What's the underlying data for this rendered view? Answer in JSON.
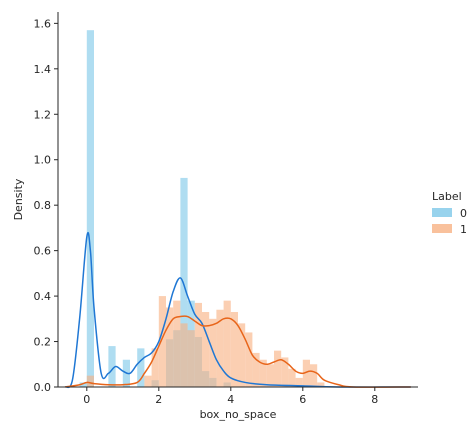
{
  "chart_data": {
    "type": "histogram",
    "xlabel": "box_no_space",
    "ylabel": "Density",
    "xlim": [
      -0.8,
      9.2
    ],
    "ylim": [
      0,
      1.65
    ],
    "xticks": [
      0,
      2,
      4,
      6,
      8
    ],
    "yticks": [
      0.0,
      0.2,
      0.4,
      0.6,
      0.8,
      1.0,
      1.2,
      1.4,
      1.6
    ],
    "bin_width": 0.2,
    "legend": {
      "title": "Label",
      "placement": "right",
      "entries": [
        "0",
        "1"
      ]
    },
    "series": [
      {
        "name": "0",
        "color": "#7ec8e8",
        "line_color": "#1f77d4",
        "histogram": [
          {
            "x": -0.1,
            "density": 0.02
          },
          {
            "x": 0.1,
            "density": 1.57
          },
          {
            "x": 0.7,
            "density": 0.18
          },
          {
            "x": 1.5,
            "density": 0.17
          },
          {
            "x": 1.1,
            "density": 0.12
          },
          {
            "x": 1.9,
            "density": 0.03
          },
          {
            "x": 2.3,
            "density": 0.21
          },
          {
            "x": 2.5,
            "density": 0.25
          },
          {
            "x": 2.7,
            "density": 0.92
          },
          {
            "x": 2.9,
            "density": 0.38
          },
          {
            "x": 3.1,
            "density": 0.22
          },
          {
            "x": 3.3,
            "density": 0.07
          },
          {
            "x": 3.5,
            "density": 0.04
          },
          {
            "x": 3.9,
            "density": 0.02
          }
        ],
        "kde": [
          [
            -0.6,
            0.0
          ],
          [
            -0.4,
            0.03
          ],
          [
            -0.2,
            0.3
          ],
          [
            0.0,
            0.66
          ],
          [
            0.1,
            0.6
          ],
          [
            0.2,
            0.35
          ],
          [
            0.4,
            0.06
          ],
          [
            0.6,
            0.06
          ],
          [
            0.8,
            0.09
          ],
          [
            1.0,
            0.07
          ],
          [
            1.2,
            0.06
          ],
          [
            1.4,
            0.1
          ],
          [
            1.6,
            0.13
          ],
          [
            1.8,
            0.15
          ],
          [
            2.0,
            0.2
          ],
          [
            2.2,
            0.3
          ],
          [
            2.4,
            0.42
          ],
          [
            2.6,
            0.48
          ],
          [
            2.8,
            0.4
          ],
          [
            3.0,
            0.32
          ],
          [
            3.2,
            0.28
          ],
          [
            3.4,
            0.2
          ],
          [
            3.6,
            0.12
          ],
          [
            3.8,
            0.07
          ],
          [
            4.0,
            0.04
          ],
          [
            4.4,
            0.02
          ],
          [
            5.0,
            0.01
          ],
          [
            6.0,
            0.005
          ],
          [
            7.0,
            0.0
          ],
          [
            9.0,
            0.0
          ]
        ]
      },
      {
        "name": "1",
        "color": "#f8b183",
        "line_color": "#e8651a",
        "histogram": [
          {
            "x": 0.1,
            "density": 0.05
          },
          {
            "x": 1.7,
            "density": 0.05
          },
          {
            "x": 1.9,
            "density": 0.17
          },
          {
            "x": 2.1,
            "density": 0.4
          },
          {
            "x": 2.3,
            "density": 0.35
          },
          {
            "x": 2.5,
            "density": 0.38
          },
          {
            "x": 2.7,
            "density": 0.28
          },
          {
            "x": 2.9,
            "density": 0.25
          },
          {
            "x": 3.1,
            "density": 0.37
          },
          {
            "x": 3.3,
            "density": 0.33
          },
          {
            "x": 3.5,
            "density": 0.3
          },
          {
            "x": 3.7,
            "density": 0.34
          },
          {
            "x": 3.9,
            "density": 0.38
          },
          {
            "x": 4.1,
            "density": 0.33
          },
          {
            "x": 4.3,
            "density": 0.28
          },
          {
            "x": 4.5,
            "density": 0.24
          },
          {
            "x": 4.7,
            "density": 0.15
          },
          {
            "x": 4.9,
            "density": 0.12
          },
          {
            "x": 5.1,
            "density": 0.1
          },
          {
            "x": 5.3,
            "density": 0.16
          },
          {
            "x": 5.5,
            "density": 0.13
          },
          {
            "x": 5.7,
            "density": 0.08
          },
          {
            "x": 5.9,
            "density": 0.04
          },
          {
            "x": 6.1,
            "density": 0.12
          },
          {
            "x": 6.3,
            "density": 0.1
          },
          {
            "x": 6.5,
            "density": 0.02
          }
        ],
        "kde": [
          [
            -0.6,
            0.0
          ],
          [
            -0.2,
            0.01
          ],
          [
            0.0,
            0.02
          ],
          [
            0.2,
            0.015
          ],
          [
            0.6,
            0.01
          ],
          [
            1.0,
            0.01
          ],
          [
            1.4,
            0.02
          ],
          [
            1.6,
            0.06
          ],
          [
            1.8,
            0.11
          ],
          [
            2.0,
            0.18
          ],
          [
            2.2,
            0.25
          ],
          [
            2.4,
            0.3
          ],
          [
            2.6,
            0.31
          ],
          [
            2.8,
            0.31
          ],
          [
            3.0,
            0.29
          ],
          [
            3.2,
            0.27
          ],
          [
            3.4,
            0.27
          ],
          [
            3.6,
            0.28
          ],
          [
            3.8,
            0.3
          ],
          [
            4.0,
            0.3
          ],
          [
            4.2,
            0.27
          ],
          [
            4.4,
            0.21
          ],
          [
            4.6,
            0.14
          ],
          [
            4.8,
            0.11
          ],
          [
            5.0,
            0.1
          ],
          [
            5.2,
            0.11
          ],
          [
            5.4,
            0.12
          ],
          [
            5.6,
            0.1
          ],
          [
            5.8,
            0.07
          ],
          [
            6.0,
            0.06
          ],
          [
            6.2,
            0.07
          ],
          [
            6.4,
            0.06
          ],
          [
            6.6,
            0.03
          ],
          [
            7.0,
            0.01
          ],
          [
            7.4,
            0.0
          ],
          [
            9.0,
            0.0
          ]
        ]
      }
    ]
  }
}
